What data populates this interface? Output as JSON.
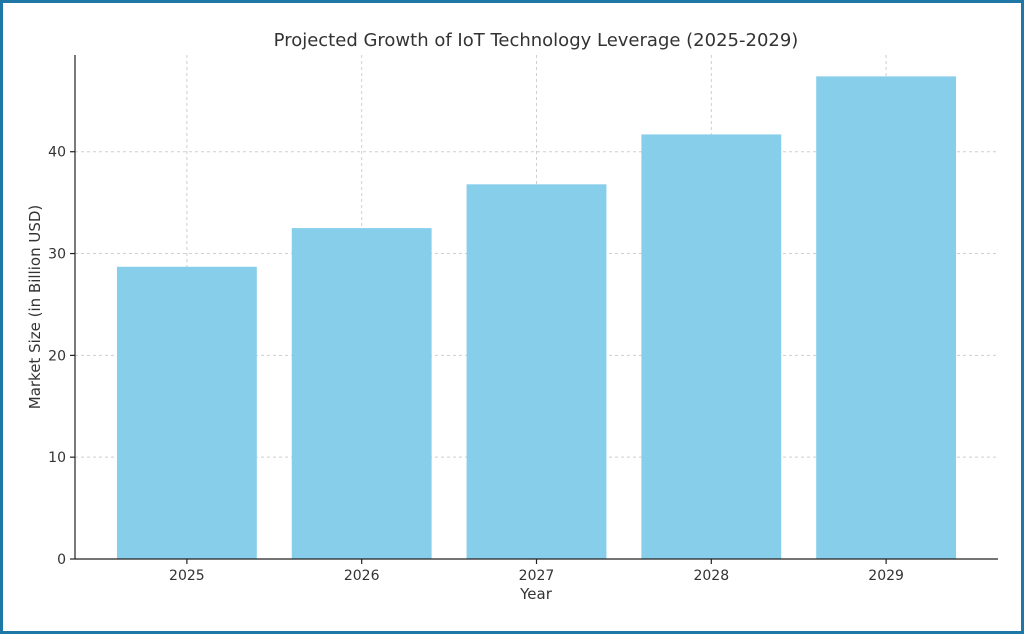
{
  "chart_data": {
    "type": "bar",
    "title": "Projected Growth of IoT Technology Leverage (2025-2029)",
    "xlabel": "Year",
    "ylabel": "Market Size (in Billion USD)",
    "categories": [
      "2025",
      "2026",
      "2027",
      "2028",
      "2029"
    ],
    "values": [
      28.7,
      32.5,
      36.8,
      41.7,
      47.4
    ],
    "ylim": [
      0,
      49.5
    ],
    "yticks": [
      0,
      10,
      20,
      30,
      40
    ],
    "grid": true,
    "bar_color": "#87ceeb"
  }
}
